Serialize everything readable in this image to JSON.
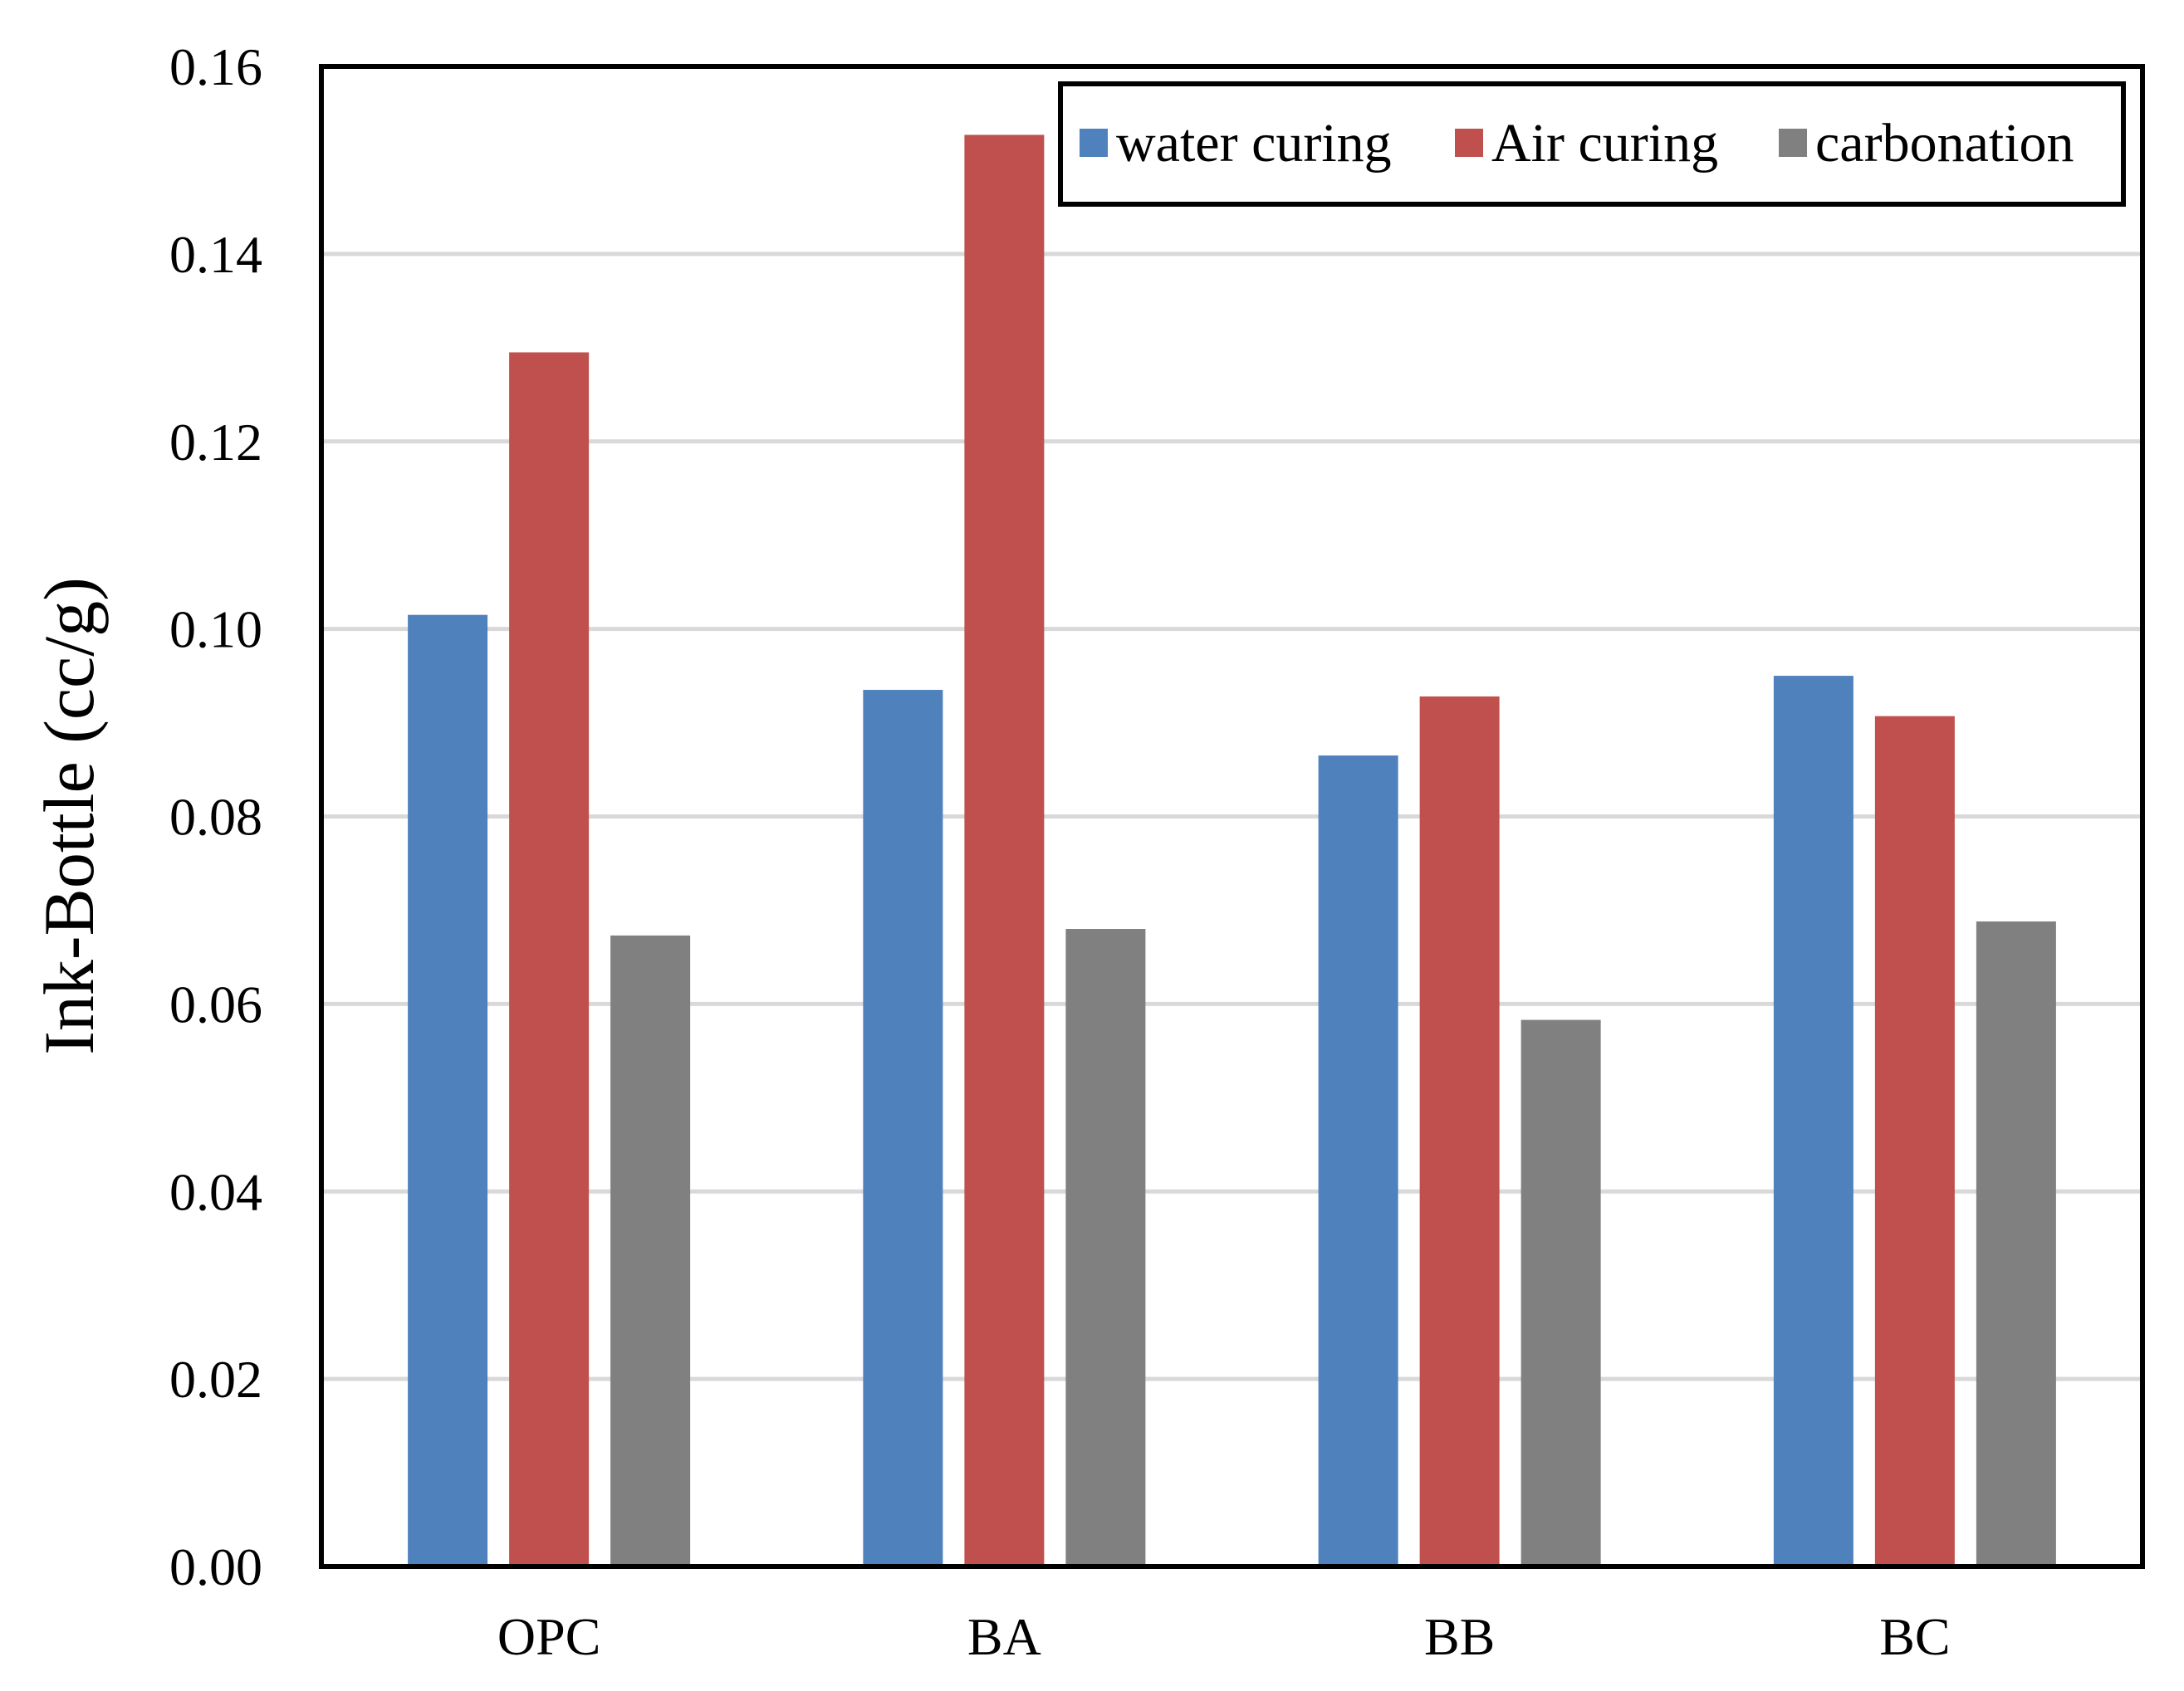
{
  "chart_data": {
    "type": "bar",
    "title": "",
    "xlabel": "",
    "ylabel": "Ink-Bottle (cc/g)",
    "ylim": [
      0,
      0.16
    ],
    "yticks": [
      "0.00",
      "0.02",
      "0.04",
      "0.06",
      "0.08",
      "0.10",
      "0.12",
      "0.14",
      "0.16"
    ],
    "grid": true,
    "legend_position": "top-right",
    "categories": [
      "OPC",
      "BA",
      "BB",
      "BC"
    ],
    "series": [
      {
        "name": "water curing",
        "color": "#4F81BD",
        "values": [
          0.1015,
          0.0935,
          0.0865,
          0.095
        ]
      },
      {
        "name": "Air curing",
        "color": "#C0504D",
        "values": [
          0.1295,
          0.1527,
          0.0928,
          0.0907
        ]
      },
      {
        "name": "carbonation",
        "color": "#808080",
        "values": [
          0.0673,
          0.068,
          0.0583,
          0.0688
        ]
      }
    ]
  }
}
